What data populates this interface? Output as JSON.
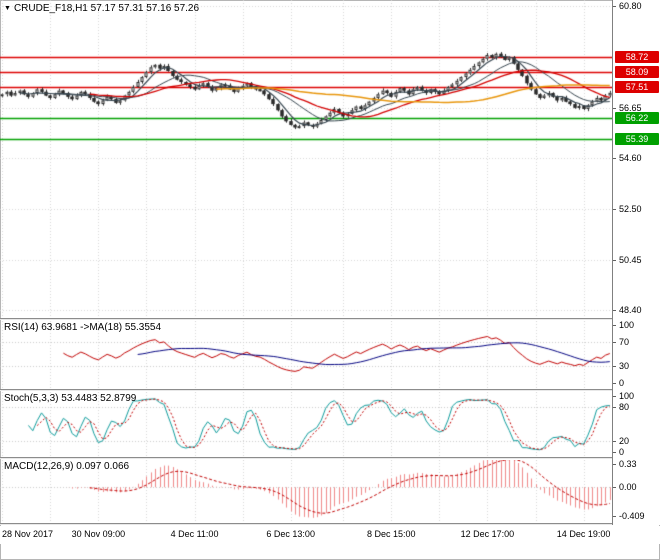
{
  "window": {
    "title_line": "CRUDE_F18,H1 57.17 57.31 57.16 57.26"
  },
  "icons": {
    "title_marker": "▼"
  },
  "chart_data": {
    "type": "candlestick",
    "symbol": "CRUDE_F18",
    "timeframe": "H1",
    "ohlc_current": {
      "open": 57.17,
      "high": 57.31,
      "low": 57.16,
      "close": 57.26
    },
    "grid_color": "#d6d6d6",
    "x_ticks": [
      {
        "i": 0,
        "t": "28 Nov 2017"
      },
      {
        "i": 22,
        "t": "30 Nov 09:00"
      },
      {
        "i": 44,
        "t": "4 Dec 11:00"
      },
      {
        "i": 66,
        "t": "6 Dec 13:00"
      },
      {
        "i": 89,
        "t": "8 Dec 15:00"
      },
      {
        "i": 111,
        "t": "12 Dec 17:00"
      },
      {
        "i": 133,
        "t": "14 Dec 19:00"
      }
    ],
    "panels": {
      "price": {
        "ylim": [
          48.4,
          60.8
        ],
        "yticks": [
          {
            "v": 60.8,
            "t": "60.80"
          },
          {
            "v": 56.65,
            "t": "56.65"
          },
          {
            "v": 54.6,
            "t": "54.60"
          },
          {
            "v": 52.5,
            "t": "52.50"
          },
          {
            "v": 50.45,
            "t": "50.45"
          },
          {
            "v": 48.4,
            "t": "48.40"
          }
        ],
        "levels": [
          {
            "v": 58.72,
            "t": "58.72",
            "color": "#dd0000"
          },
          {
            "v": 58.09,
            "t": "58.09",
            "color": "#dd0000"
          },
          {
            "v": 57.51,
            "t": "57.51",
            "color": "#dd0000"
          },
          {
            "v": 56.22,
            "t": "56.22",
            "color": "#00a000"
          },
          {
            "v": 55.39,
            "t": "55.39",
            "color": "#00a000"
          }
        ],
        "candle_up_color": "#ffffff",
        "candle_down_color": "#2b2b2b",
        "candle_border": "#2b2b2b",
        "overlays": [
          {
            "name": "SMA",
            "period": 5,
            "color": "#36454f",
            "width": 1.2
          },
          {
            "name": "SMA",
            "period": 13,
            "color": "#36454f",
            "width": 1.0
          },
          {
            "name": "SMA",
            "period": 21,
            "color": "#d40000",
            "width": 1.3
          },
          {
            "name": "SMA",
            "period": 50,
            "color": "#e8960c",
            "width": 1.5
          }
        ],
        "close": [
          57.2,
          57.3,
          57.15,
          57.25,
          57.35,
          57.2,
          57.1,
          57.25,
          57.4,
          57.3,
          57.15,
          57.05,
          57.2,
          57.35,
          57.25,
          57.1,
          57.0,
          57.15,
          57.3,
          57.2,
          57.05,
          56.9,
          56.8,
          56.95,
          57.1,
          57.0,
          56.85,
          56.95,
          57.15,
          57.3,
          57.5,
          57.7,
          57.9,
          58.1,
          58.3,
          58.4,
          58.25,
          58.35,
          58.15,
          57.95,
          57.8,
          57.7,
          57.6,
          57.5,
          57.4,
          57.55,
          57.65,
          57.5,
          57.35,
          57.45,
          57.6,
          57.55,
          57.4,
          57.3,
          57.45,
          57.55,
          57.65,
          57.5,
          57.4,
          57.35,
          57.2,
          57.0,
          56.8,
          56.55,
          56.3,
          56.1,
          55.95,
          55.85,
          55.9,
          56.05,
          55.95,
          55.88,
          56.0,
          56.15,
          56.3,
          56.45,
          56.6,
          56.45,
          56.3,
          56.4,
          56.55,
          56.7,
          56.6,
          56.75,
          56.9,
          57.05,
          57.2,
          57.35,
          57.25,
          57.1,
          57.3,
          57.45,
          57.35,
          57.2,
          57.4,
          57.5,
          57.35,
          57.25,
          57.4,
          57.3,
          57.2,
          57.35,
          57.5,
          57.6,
          57.75,
          57.9,
          58.05,
          58.2,
          58.35,
          58.5,
          58.65,
          58.8,
          58.7,
          58.85,
          58.75,
          58.6,
          58.7,
          58.45,
          58.2,
          57.95,
          57.65,
          57.4,
          57.2,
          57.05,
          57.15,
          57.25,
          57.1,
          56.95,
          57.05,
          56.9,
          56.8,
          56.65,
          56.72,
          56.6,
          56.75,
          56.9,
          57.05,
          56.95,
          57.15,
          57.26
        ]
      },
      "rsi": {
        "label": "RSI(14) 63.9681 ->MA(18) 55.3554",
        "period": 14,
        "ma_period": 18,
        "value": 63.9681,
        "ma_value": 55.3554,
        "ylim": [
          0,
          100
        ],
        "yticks": [
          {
            "v": 100,
            "t": "100"
          },
          {
            "v": 70,
            "t": "70"
          },
          {
            "v": 30,
            "t": "30"
          },
          {
            "v": 0,
            "t": "0"
          }
        ],
        "line_color": "#c00000",
        "ma_color": "#000080"
      },
      "stoch": {
        "label": "Stoch(5,3,3) 53.4483 52.8799",
        "params": [
          5,
          3,
          3
        ],
        "k": 53.4483,
        "d": 52.8799,
        "ylim": [
          0,
          100
        ],
        "yticks": [
          {
            "v": 100,
            "t": "100"
          },
          {
            "v": 80,
            "t": "80"
          },
          {
            "v": 20,
            "t": "20"
          },
          {
            "v": 0,
            "t": "0"
          }
        ],
        "k_color": "#0d9b9b",
        "d_color": "#c00000"
      },
      "macd": {
        "label": "MACD(12,26,9) 0.097 0.066",
        "params": [
          12,
          26,
          9
        ],
        "value": 0.097,
        "signal": 0.066,
        "ylim": [
          -0.409,
          0.33
        ],
        "yticks": [
          {
            "v": 0.33,
            "t": "0.33"
          },
          {
            "v": 0,
            "t": "0.00"
          },
          {
            "v": -0.409,
            "t": "-0.409"
          }
        ],
        "hist_color": "#ef8a8a",
        "signal_color": "#c00000"
      }
    }
  }
}
